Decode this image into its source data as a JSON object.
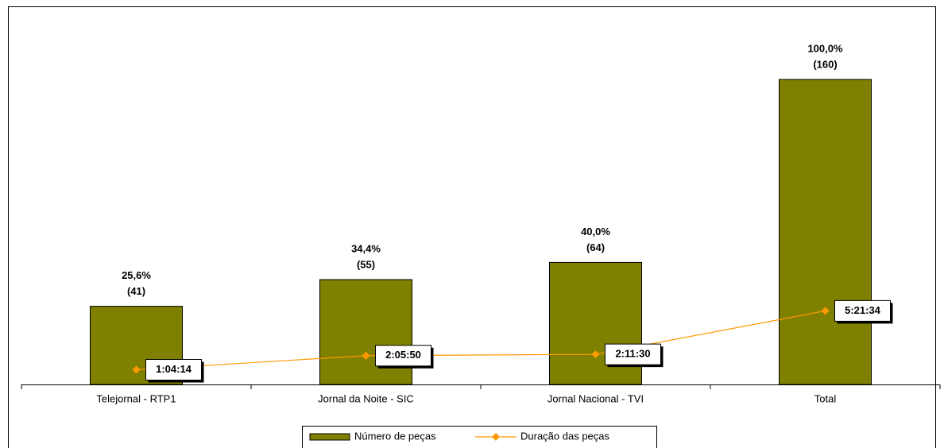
{
  "chart_data": {
    "type": "bar_line",
    "categories": [
      "Telejornal - RTP1",
      "Jornal da Noite - SIC",
      "Jornal Nacional - TVI",
      "Total"
    ],
    "series": [
      {
        "name": "Número de peças",
        "type": "bar",
        "color": "#808000",
        "values": [
          41,
          55,
          64,
          160
        ],
        "value_labels": [
          "(41)",
          "(55)",
          "(64)",
          "(160)"
        ],
        "shares": [
          25.6,
          34.4,
          40.0,
          100.0
        ],
        "share_labels": [
          "25,6%",
          "34,4%",
          "40,0%",
          "100,0%"
        ]
      },
      {
        "name": "Duração das peças",
        "type": "line",
        "axis": "y2",
        "color": "#ff9900",
        "values": [
          3854,
          7550,
          7890,
          19294
        ],
        "value_labels": [
          "1:04:14",
          "2:05:50",
          "2:11:30",
          "5:21:34"
        ]
      }
    ],
    "ylim": [
      0,
      180
    ],
    "y2lim": [
      0,
      90000
    ],
    "legend": "bottom"
  }
}
